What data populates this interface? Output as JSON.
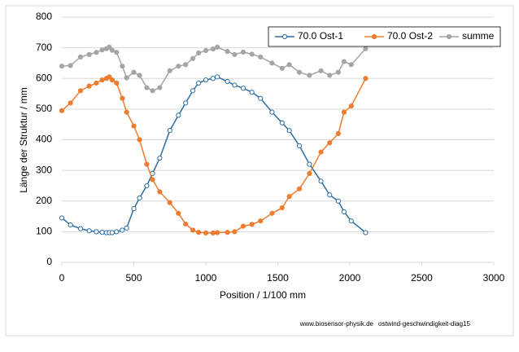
{
  "chart_data": {
    "type": "line",
    "x_label": "Position  /  1/100 mm",
    "y_label": "Länge der Struktur / mm",
    "footer": [
      "www.biosensor-physik.de",
      "ostwind-geschwindigkeit-diag15"
    ],
    "xlim": [
      0,
      3000
    ],
    "xticks": [
      0,
      500,
      1000,
      1500,
      2000,
      2500,
      3000
    ],
    "ylim": [
      0,
      800
    ],
    "yticks": [
      0,
      100,
      200,
      300,
      400,
      500,
      600,
      700,
      800
    ],
    "grid": true,
    "legend": "top-right",
    "x": [
      0,
      60,
      130,
      190,
      240,
      280,
      310,
      330,
      350,
      380,
      420,
      450,
      500,
      540,
      590,
      630,
      680,
      750,
      810,
      860,
      910,
      950,
      1000,
      1050,
      1080,
      1150,
      1200,
      1260,
      1320,
      1380,
      1460,
      1530,
      1580,
      1650,
      1720,
      1800,
      1860,
      1920,
      1960,
      2010,
      2110
    ],
    "series": [
      {
        "name": "70.0 Ost-1",
        "color": "#2e6da4",
        "marker": "open",
        "values": [
          145,
          122,
          110,
          103,
          100,
          98,
          97,
          97,
          97,
          100,
          105,
          112,
          175,
          210,
          250,
          290,
          340,
          430,
          480,
          520,
          560,
          585,
          595,
          600,
          605,
          590,
          578,
          568,
          555,
          535,
          490,
          455,
          430,
          380,
          320,
          265,
          220,
          200,
          165,
          135,
          97
        ]
      },
      {
        "name": "70.0 Ost-2",
        "color": "#ed7d31",
        "marker": "filled",
        "values": [
          495,
          520,
          560,
          575,
          585,
          595,
          600,
          605,
          595,
          585,
          535,
          490,
          445,
          400,
          320,
          270,
          230,
          195,
          160,
          125,
          105,
          98,
          96,
          96,
          97,
          98,
          100,
          118,
          124,
          135,
          160,
          178,
          215,
          240,
          290,
          360,
          390,
          420,
          490,
          510,
          600
        ]
      },
      {
        "name": "summe",
        "color": "#a5a5a5",
        "marker": "filled",
        "values": [
          640,
          642,
          670,
          678,
          685,
          693,
          697,
          702,
          692,
          685,
          640,
          602,
          620,
          610,
          570,
          560,
          570,
          625,
          640,
          645,
          665,
          683,
          691,
          696,
          702,
          688,
          678,
          686,
          679,
          670,
          650,
          633,
          645,
          620,
          610,
          625,
          610,
          620,
          655,
          645,
          697
        ]
      }
    ]
  }
}
